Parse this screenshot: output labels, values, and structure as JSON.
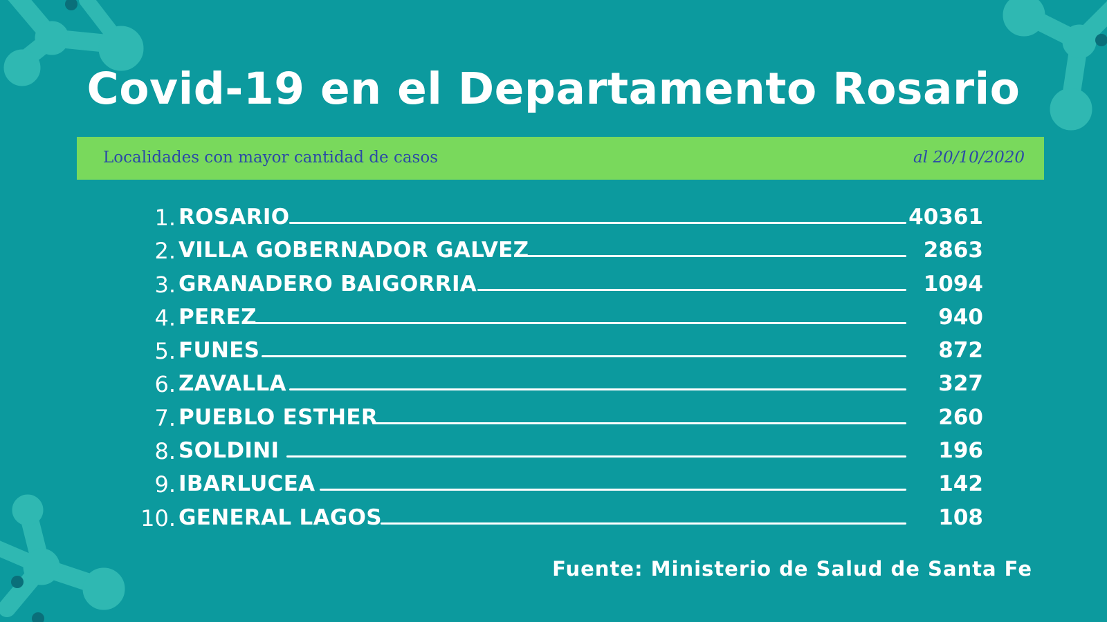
{
  "title": "Covid-19 en el Departamento Rosario",
  "banner": {
    "left_text": "Localidades con mayor cantidad de casos",
    "right_text": "al 20/10/2020"
  },
  "rows": [
    {
      "rank": "1.",
      "name": "ROSARIO",
      "value": "40361"
    },
    {
      "rank": "2.",
      "name": "VILLA GOBERNADOR GALVEZ",
      "value": "2863"
    },
    {
      "rank": "3.",
      "name": "GRANADERO BAIGORRIA",
      "value": "1094"
    },
    {
      "rank": "4.",
      "name": "PEREZ",
      "value": "940"
    },
    {
      "rank": "5.",
      "name": "FUNES",
      "value": "872"
    },
    {
      "rank": "6.",
      "name": "ZAVALLA",
      "value": "327"
    },
    {
      "rank": "7.",
      "name": "PUEBLO ESTHER",
      "value": "260"
    },
    {
      "rank": "8.",
      "name": "SOLDINI",
      "value": "196"
    },
    {
      "rank": "9.",
      "name": "IBARLUCEA",
      "value": "142"
    },
    {
      "rank": "10.",
      "name": "GENERAL LAGOS",
      "value": "108"
    }
  ],
  "source": "Fuente: Ministerio de Salud de Santa Fe",
  "colors": {
    "background": "#0c9a9e",
    "banner": "#79d95c",
    "banner_text": "#2b4aa6",
    "decoration": "#2fb8b2",
    "decoration_dots": "#0a6f7a",
    "text": "#ffffff"
  }
}
